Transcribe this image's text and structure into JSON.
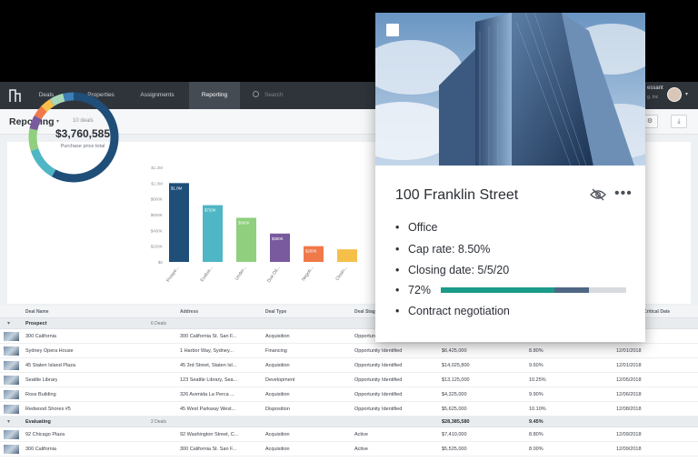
{
  "nav": {
    "tabs": [
      "Deals",
      "Properties",
      "Assignments",
      "Reporting"
    ],
    "active_tab": "Reporting",
    "search_placeholder": "Search",
    "user_name": "essant",
    "user_sub": "g, Inc"
  },
  "header": {
    "title": "Reporting",
    "deal_count": "10 deals"
  },
  "donut": {
    "value": "$3,760,585",
    "label": "Purchase price total",
    "segments": [
      {
        "color": "#1f4e79",
        "fraction": 0.58
      },
      {
        "color": "#4fb6c5",
        "fraction": 0.12
      },
      {
        "color": "#8fcf7d",
        "fraction": 0.08
      },
      {
        "color": "#7a5a9e",
        "fraction": 0.05
      },
      {
        "color": "#f0794a",
        "fraction": 0.04
      },
      {
        "color": "#f5c04a",
        "fraction": 0.04
      },
      {
        "color": "#a8d8b9",
        "fraction": 0.05
      },
      {
        "color": "#3b7fb5",
        "fraction": 0.04
      }
    ]
  },
  "chart_data": {
    "type": "bar",
    "categories": [
      "Prospe...",
      "Evalua...",
      "Under...",
      "Due Dil...",
      "Negoti...",
      "Closin..."
    ],
    "values": [
      1.0,
      0.72,
      0.56,
      0.36,
      0.2,
      0.16
    ],
    "bar_labels": [
      "$1.0M",
      "$720K",
      "$560K",
      "$360K",
      "$200K",
      ""
    ],
    "bar_colors": [
      "#1f4e79",
      "#4fb6c5",
      "#8fcf7d",
      "#7a5a9e",
      "#f0794a",
      "#f5c04a"
    ],
    "ytick_labels": [
      "$1.2M",
      "$1.0M",
      "$800K",
      "$600K",
      "$400K",
      "$200K",
      "$0"
    ],
    "ylim": [
      0,
      1.2
    ]
  },
  "table": {
    "headers": [
      "Deal Name",
      "Address",
      "Deal Type",
      "Deal Stage",
      "",
      "",
      "Critical Date"
    ],
    "groups": [
      {
        "name": "Prospect",
        "count": "6 Deals",
        "rows": [
          {
            "name": "300 California",
            "address": "300 California St. San F...",
            "type": "Acquisition",
            "stage": "Opportunity Identified",
            "price": "$3,320,000",
            "rate": "10.00%",
            "date": "12/01/2018"
          },
          {
            "name": "Sydney Opera House",
            "address": "1 Harbor Way, Sydney...",
            "type": "Financing",
            "stage": "Opportunity Identified",
            "price": "$6,425,000",
            "rate": "8.80%",
            "date": "12/01/2018"
          },
          {
            "name": "45 Staten Island Plaza",
            "address": "45 3rd Street, Staten Isl...",
            "type": "Acquisition",
            "stage": "Opportunity Identified",
            "price": "$14,025,800",
            "rate": "9.60%",
            "date": "12/01/2018"
          },
          {
            "name": "Seattle Library",
            "address": "123 Seattle Library, Sea...",
            "type": "Development",
            "stage": "Opportunity Identified",
            "price": "$13,125,000",
            "rate": "10.25%",
            "date": "12/05/2018"
          },
          {
            "name": "Ross Building",
            "address": "326 Avenida La Perca ...",
            "type": "Acquisition",
            "stage": "Opportunity Identified",
            "price": "$4,325,000",
            "rate": "9.90%",
            "date": "12/06/2018"
          },
          {
            "name": "Redwood Shores #5",
            "address": "45 West Parkway West...",
            "type": "Disposition",
            "stage": "Opportunity Identified",
            "price": "$5,625,000",
            "rate": "10.10%",
            "date": "12/08/2018"
          }
        ]
      },
      {
        "name": "Evaluating",
        "count": "2 Deals",
        "total_price": "$28,385,580",
        "total_rate": "9.45%",
        "rows": [
          {
            "name": "92 Chicago Plaza",
            "address": "92 Washington Street, C...",
            "type": "Acquisition",
            "stage": "Active",
            "price": "$7,410,000",
            "rate": "8.80%",
            "date": "12/09/2018"
          },
          {
            "name": "300 California",
            "address": "300 California St. San F...",
            "type": "Acquisition",
            "stage": "Active",
            "price": "$5,525,000",
            "rate": "8.00%",
            "date": "12/09/2018"
          }
        ]
      }
    ]
  },
  "card": {
    "title": "100 Franklin Street",
    "property_type": "Office",
    "cap_rate": "Cap rate: 8.50%",
    "closing_date": "Closing date: 5/5/20",
    "progress_label": "72%",
    "progress": 0.72,
    "stage": "Contract negotiation"
  }
}
